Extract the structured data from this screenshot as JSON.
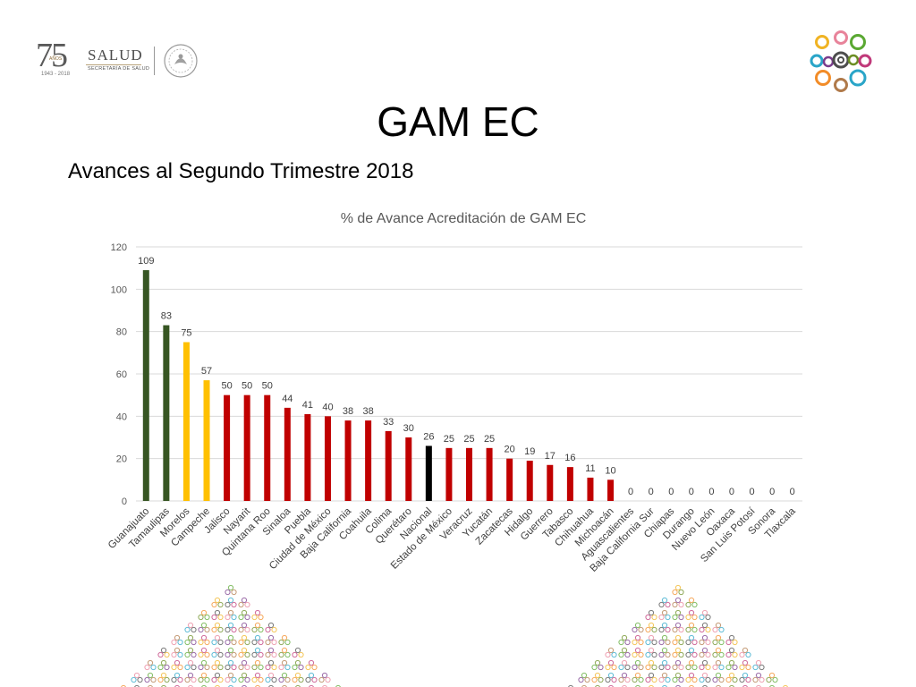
{
  "slide": {
    "title": "GAM EC",
    "subtitle": "Avances al Segundo Trimestre 2018"
  },
  "logo": {
    "anniversary": "75",
    "anos": "AÑOS",
    "years": "1943 - 2018",
    "salud": "SALUD",
    "secretaria": "SECRETARÍA DE SALUD"
  },
  "colors": {
    "dark_green": "#375623",
    "yellow": "#FFC000",
    "red": "#C00000",
    "black": "#000000",
    "grid": "#D9D9D9"
  },
  "chart_data": {
    "type": "bar",
    "title": "% de Avance Acreditación de GAM EC",
    "xlabel": "",
    "ylabel": "",
    "ylim": [
      0,
      120
    ],
    "yticks": [
      0,
      20,
      40,
      60,
      80,
      100,
      120
    ],
    "grid": true,
    "categories": [
      "Guanajuato",
      "Tamaulipas",
      "Morelos",
      "Campeche",
      "Jalisco",
      "Nayarit",
      "Quintana Roo",
      "Sinaloa",
      "Puebla",
      "Ciudad de México",
      "Baja California",
      "Coahuila",
      "Colima",
      "Querétaro",
      "Nacional",
      "Estado de México",
      "Veracruz",
      "Yucatán",
      "Zacatecas",
      "Hidalgo",
      "Guerrero",
      "Tabasco",
      "Chihuahua",
      "Michoacán",
      "Aguascalientes",
      "Baja California Sur",
      "Chiapas",
      "Durango",
      "Nuevo León",
      "Oaxaca",
      "San Luis Potosí",
      "Sonora",
      "Tlaxcala"
    ],
    "values": [
      109,
      83,
      75,
      57,
      50,
      50,
      50,
      44,
      41,
      40,
      38,
      38,
      33,
      30,
      26,
      25,
      25,
      25,
      20,
      19,
      17,
      16,
      11,
      10,
      0,
      0,
      0,
      0,
      0,
      0,
      0,
      0,
      0
    ],
    "bar_colors": [
      "#375623",
      "#375623",
      "#FFC000",
      "#FFC000",
      "#C00000",
      "#C00000",
      "#C00000",
      "#C00000",
      "#C00000",
      "#C00000",
      "#C00000",
      "#C00000",
      "#C00000",
      "#C00000",
      "#000000",
      "#C00000",
      "#C00000",
      "#C00000",
      "#C00000",
      "#C00000",
      "#C00000",
      "#C00000",
      "#C00000",
      "#C00000",
      "#C00000",
      "#C00000",
      "#C00000",
      "#C00000",
      "#C00000",
      "#C00000",
      "#C00000",
      "#C00000",
      "#C00000"
    ]
  }
}
